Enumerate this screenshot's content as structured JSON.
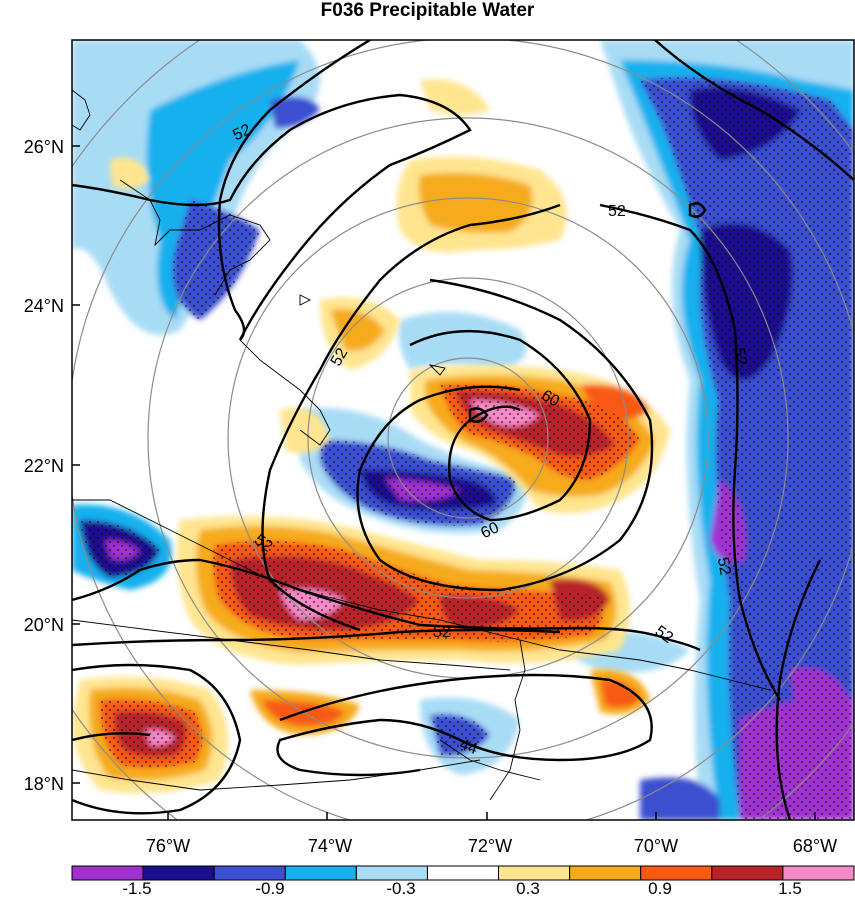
{
  "title": "F036 Precipitable Water",
  "axes": {
    "lon_labels": [
      "76°W",
      "74°W",
      "72°W",
      "70°W",
      "68°W"
    ],
    "lat_labels": [
      "26°N",
      "24°N",
      "22°N",
      "20°N",
      "18°N"
    ]
  },
  "contour_labels": [
    "52",
    "52",
    "52",
    "60",
    "60",
    "52",
    "52",
    "52",
    "52",
    "52",
    "44"
  ],
  "colorbar": {
    "labels": [
      "-1.5",
      "-0.9",
      "-0.3",
      "0.3",
      "0.9",
      "1.5"
    ],
    "colors": [
      "#a030d0",
      "#1a0f8f",
      "#3b4fd0",
      "#16b0ee",
      "#a8dcf5",
      "#ffffff",
      "#ffe58f",
      "#f6ab1f",
      "#f85a12",
      "#b8232a",
      "#f58ac8"
    ]
  }
}
